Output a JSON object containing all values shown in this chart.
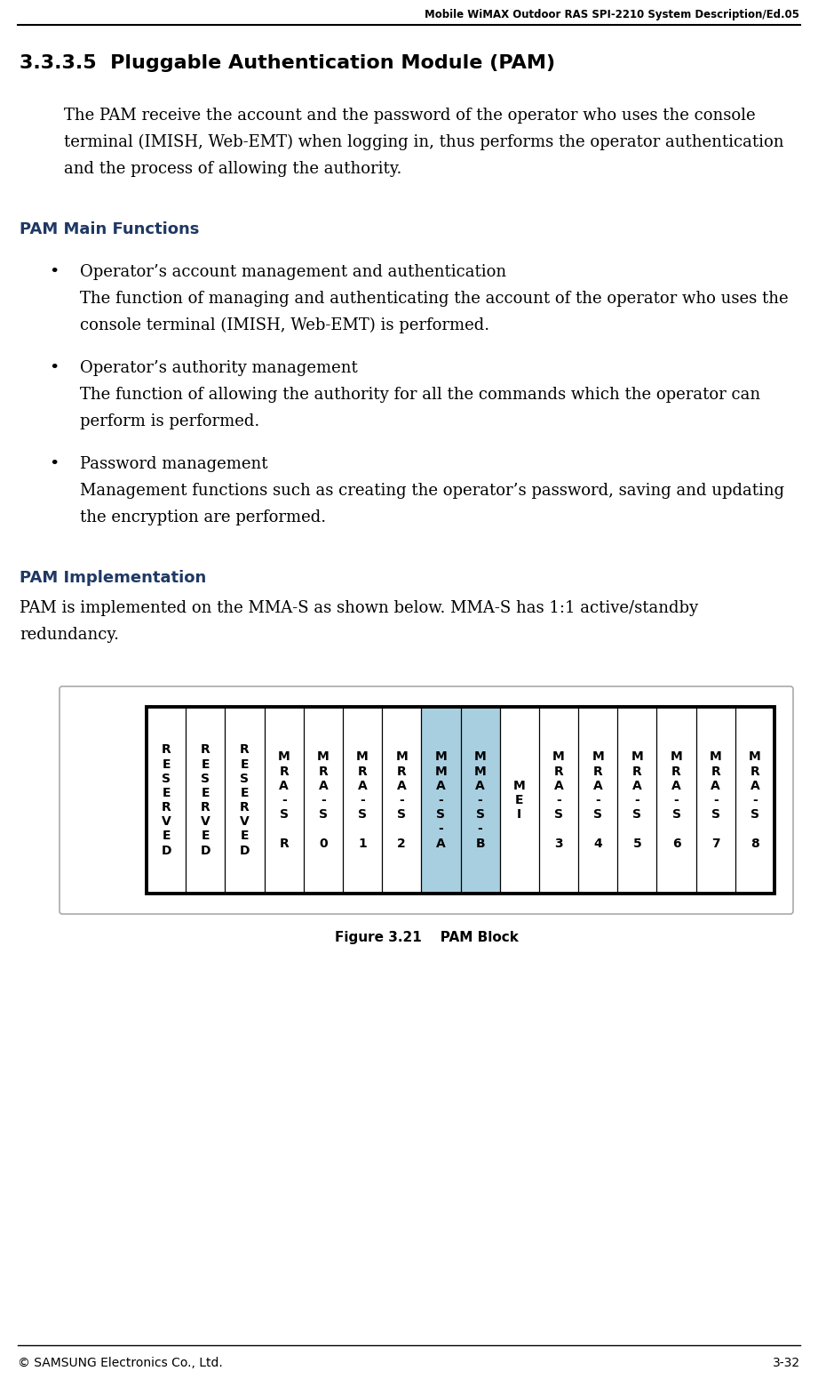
{
  "header_text": "Mobile WiMAX Outdoor RAS SPI-2210 System Description/Ed.05",
  "section_title": "3.3.3.5  Pluggable Authentication Module (PAM)",
  "intro_text": "The PAM receive the account and the password of the operator who uses the console terminal (IMISH, Web-EMT) when logging in, thus performs the operator authentication and the process of allowing the authority.",
  "main_functions_title": "PAM Main Functions",
  "bullet_items": [
    {
      "bold": "Operator’s account management and authentication",
      "body": "The function of managing and authenticating the account of the operator who uses the console terminal (IMISH, Web-EMT) is performed."
    },
    {
      "bold": "Operator’s authority management",
      "body": "The function of allowing the authority for all the commands which the operator can perform is performed."
    },
    {
      "bold": "Password management",
      "body": "Management functions such as creating the operator’s password, saving and updating the encryption are performed."
    }
  ],
  "impl_title": "PAM Implementation",
  "impl_text": "PAM is implemented on the MMA-S as shown below. MMA-S has 1:1 active/standby redundancy.",
  "figure_caption": "Figure 3.21    PAM Block",
  "footer_left": "© SAMSUNG Electronics Co., Ltd.",
  "footer_right": "3-32",
  "table_columns": [
    {
      "label": "R\nE\nS\nE\nR\nV\nE\nD",
      "highlight": false
    },
    {
      "label": "R\nE\nS\nE\nR\nV\nE\nD",
      "highlight": false
    },
    {
      "label": "R\nE\nS\nE\nR\nV\nE\nD",
      "highlight": false
    },
    {
      "label": "M\nR\nA\n-\nS\n \nR",
      "highlight": false
    },
    {
      "label": "M\nR\nA\n-\nS\n \n0",
      "highlight": false
    },
    {
      "label": "M\nR\nA\n-\nS\n \n1",
      "highlight": false
    },
    {
      "label": "M\nR\nA\n-\nS\n \n2",
      "highlight": false
    },
    {
      "label": "M\nM\nA\n-\nS\n-\nA",
      "highlight": true
    },
    {
      "label": "M\nM\nA\n-\nS\n-\nB",
      "highlight": true
    },
    {
      "label": "M\nE\nI",
      "highlight": false
    },
    {
      "label": "M\nR\nA\n-\nS\n \n3",
      "highlight": false
    },
    {
      "label": "M\nR\nA\n-\nS\n \n4",
      "highlight": false
    },
    {
      "label": "M\nR\nA\n-\nS\n \n5",
      "highlight": false
    },
    {
      "label": "M\nR\nA\n-\nS\n \n6",
      "highlight": false
    },
    {
      "label": "M\nR\nA\n-\nS\n \n7",
      "highlight": false
    },
    {
      "label": "M\nR\nA\n-\nS\n \n8",
      "highlight": false
    }
  ],
  "highlight_color": "#a8cfe0",
  "section_color": "#1F3864",
  "bg_color": "#ffffff",
  "body_font": "DejaVu Serif",
  "header_fontsize": 8.5,
  "section_title_fontsize": 16,
  "subsection_title_fontsize": 13,
  "body_fontsize": 13,
  "caption_fontsize": 11,
  "footer_fontsize": 10,
  "table_text_fontsize": 10
}
